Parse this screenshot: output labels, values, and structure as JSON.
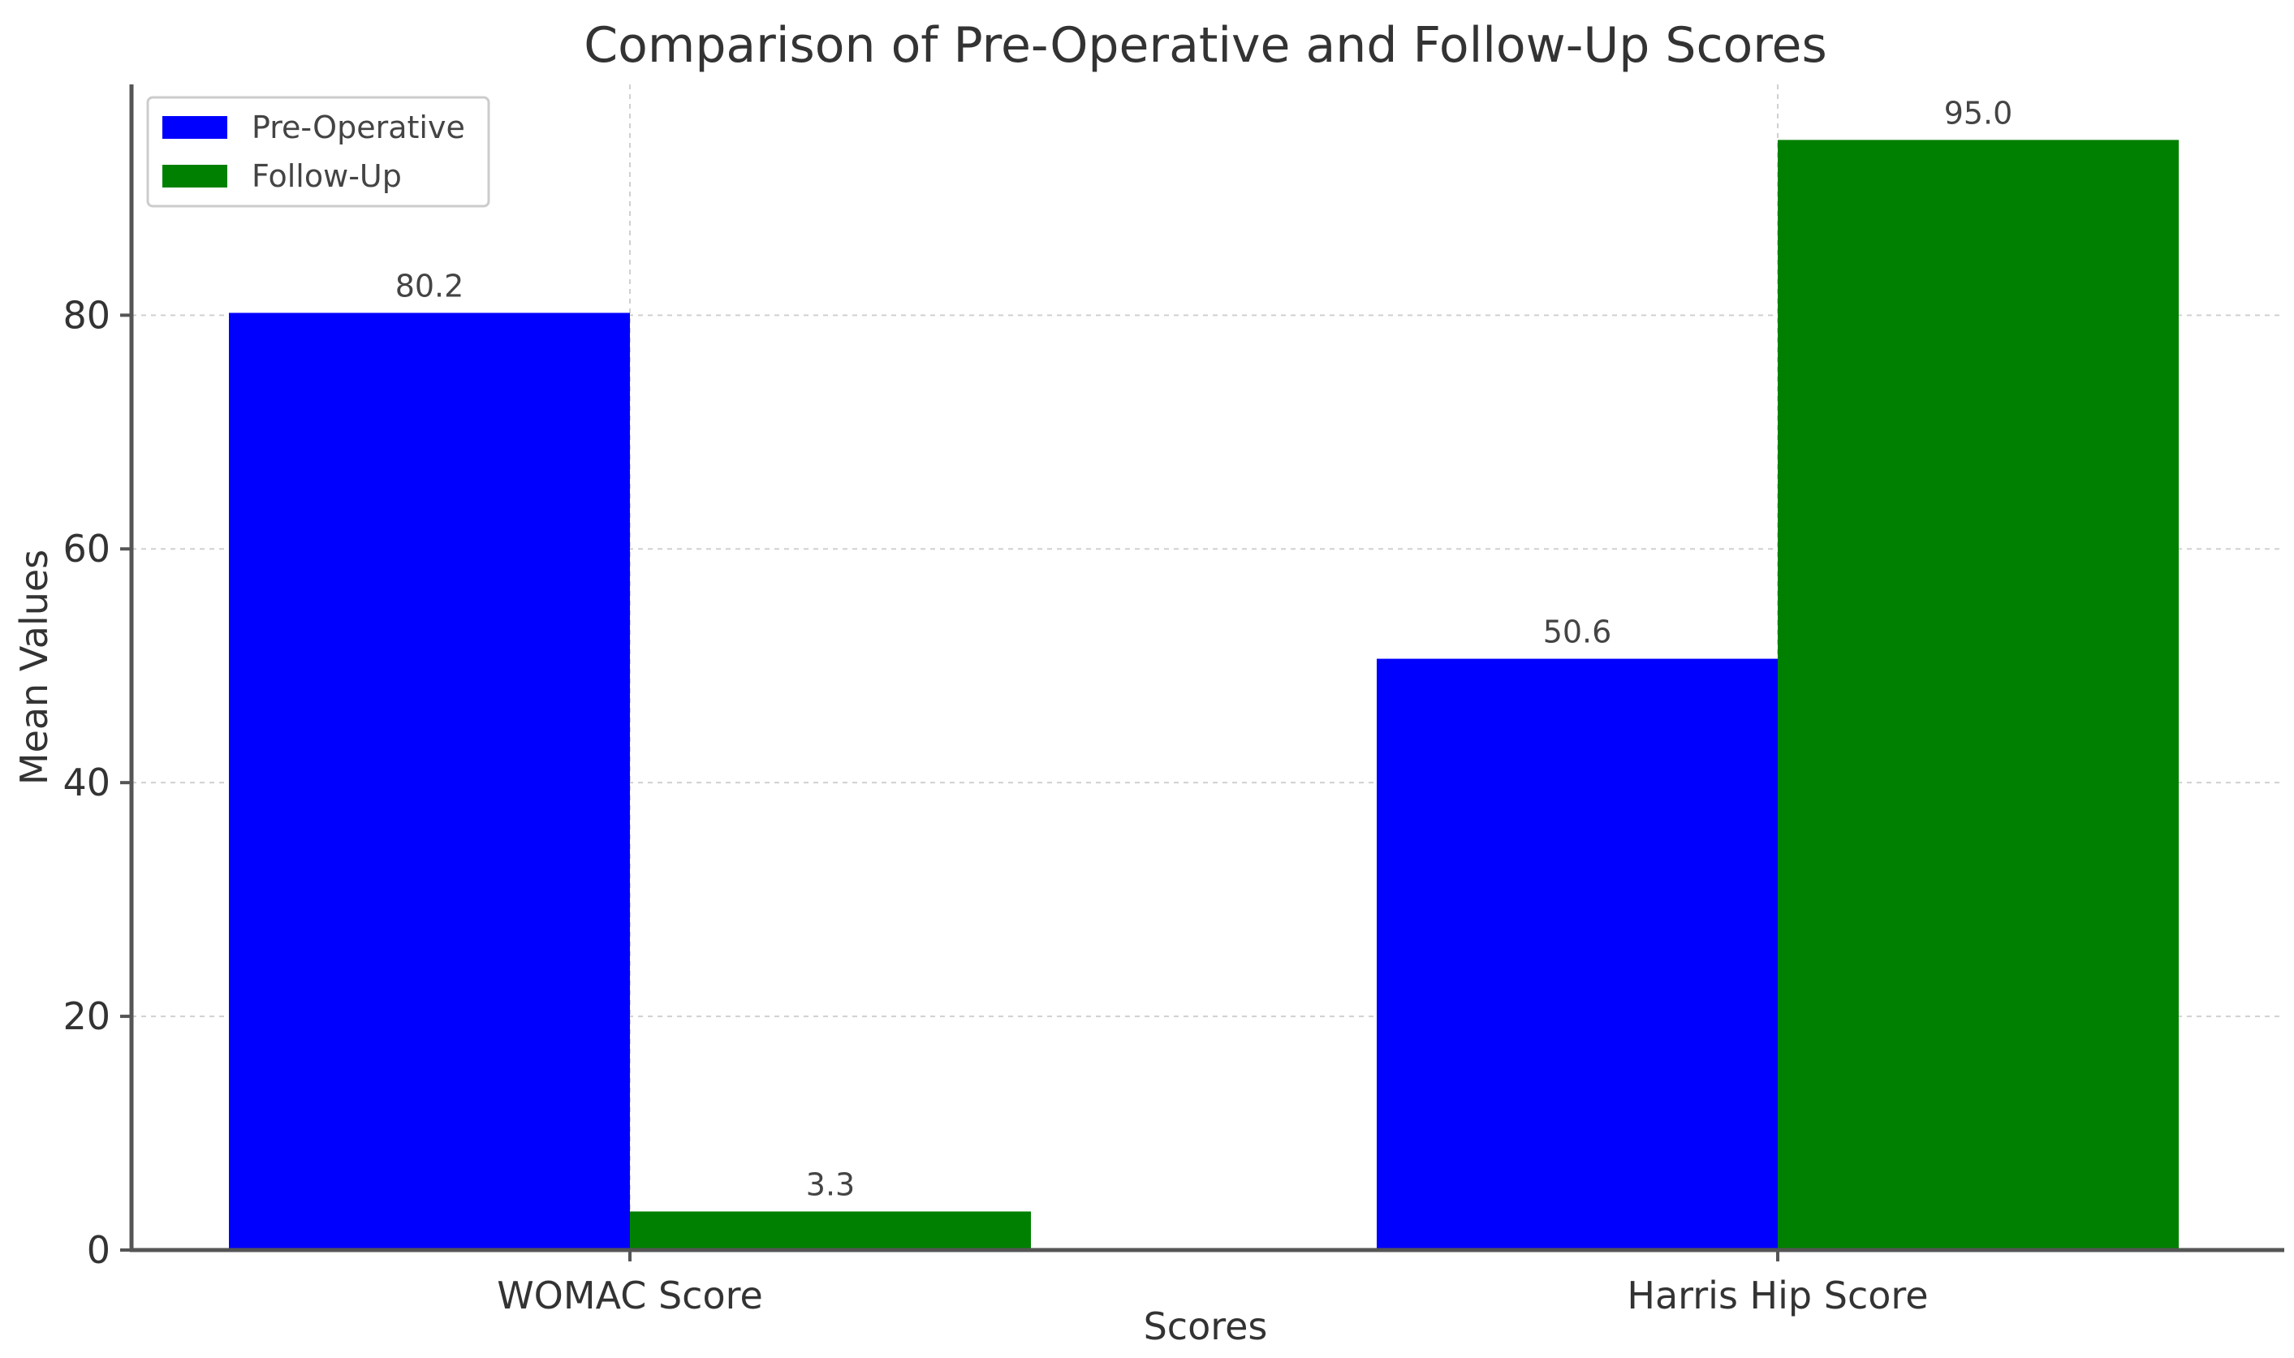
{
  "chart_data": {
    "type": "bar",
    "title": "Comparison of Pre-Operative and Follow-Up Scores",
    "xlabel": "Scores",
    "ylabel": "Mean Values",
    "categories": [
      "WOMAC Score",
      "Harris Hip Score"
    ],
    "series": [
      {
        "name": "Pre-Operative",
        "values": [
          80.2,
          50.6
        ],
        "color": "#0000ff",
        "labels": [
          "80.2",
          "50.6"
        ]
      },
      {
        "name": "Follow-Up",
        "values": [
          3.3,
          95.0
        ],
        "color": "#008000",
        "labels": [
          "3.3",
          "95.0"
        ]
      }
    ],
    "ylim": [
      0,
      99.75
    ],
    "yticks": [
      0,
      20,
      40,
      60,
      80
    ],
    "ytick_labels": [
      "0",
      "20",
      "40",
      "60",
      "80"
    ],
    "grid": true,
    "legend_position": "top-left"
  }
}
